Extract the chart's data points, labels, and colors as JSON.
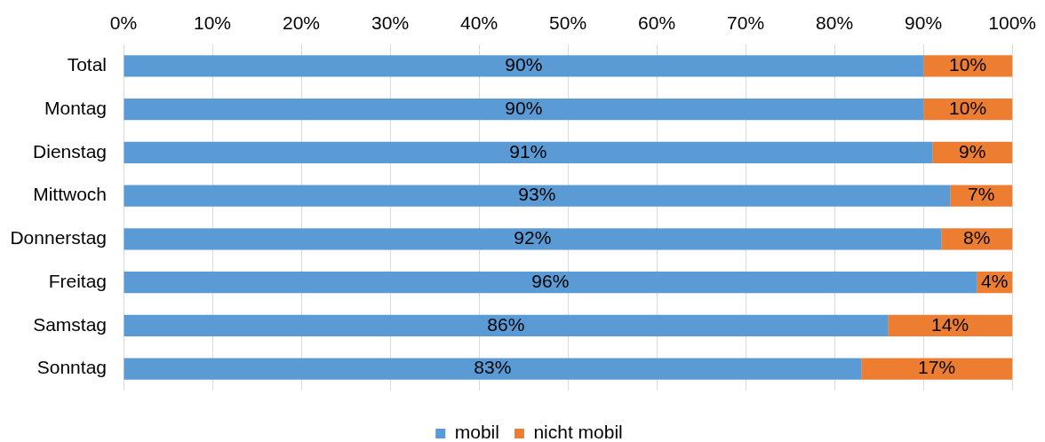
{
  "chart_data": {
    "type": "bar",
    "orientation": "horizontal",
    "stacked": true,
    "categories": [
      "Total",
      "Montag",
      "Dienstag",
      "Mittwoch",
      "Donnerstag",
      "Freitag",
      "Samstag",
      "Sonntag"
    ],
    "series": [
      {
        "name": "mobil",
        "color": "#5b9bd5",
        "values": [
          90,
          90,
          91,
          93,
          92,
          96,
          86,
          83
        ],
        "value_labels": [
          "90%",
          "90%",
          "91%",
          "93%",
          "92%",
          "96%",
          "86%",
          "83%"
        ]
      },
      {
        "name": "nicht mobil",
        "color": "#ed7d31",
        "values": [
          10,
          10,
          9,
          7,
          8,
          4,
          14,
          17
        ],
        "value_labels": [
          "10%",
          "10%",
          "9%",
          "7%",
          "8%",
          "4%",
          "14%",
          "17%"
        ]
      }
    ],
    "xlim": [
      0,
      100
    ],
    "xticks": [
      {
        "value": 0,
        "label": "0%"
      },
      {
        "value": 10,
        "label": "10%"
      },
      {
        "value": 20,
        "label": "20%"
      },
      {
        "value": 30,
        "label": "30%"
      },
      {
        "value": 40,
        "label": "40%"
      },
      {
        "value": 50,
        "label": "50%"
      },
      {
        "value": 60,
        "label": "60%"
      },
      {
        "value": 70,
        "label": "70%"
      },
      {
        "value": 80,
        "label": "80%"
      },
      {
        "value": 90,
        "label": "90%"
      },
      {
        "value": 100,
        "label": "100%"
      }
    ],
    "grid": "x",
    "legend": "bottom"
  }
}
